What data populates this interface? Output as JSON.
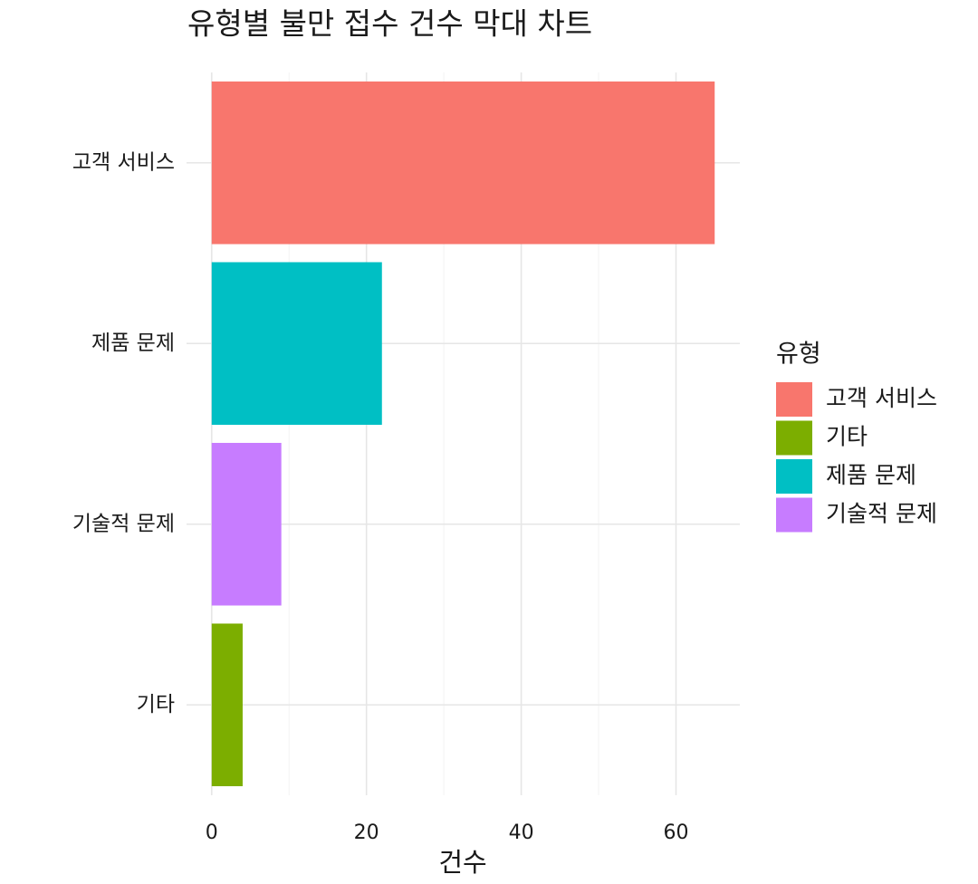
{
  "chart_data": {
    "type": "bar",
    "orientation": "horizontal",
    "title": "유형별 불만 접수 건수 막대 차트",
    "x_label": "건수",
    "categories": [
      "고객 서비스",
      "제품 문제",
      "기술적 문제",
      "기타"
    ],
    "values": [
      65,
      22,
      9,
      4
    ],
    "colors": [
      "#F8766D",
      "#00BFC4",
      "#C77CFF",
      "#7CAE00"
    ],
    "xlim": [
      -3.25,
      68.25
    ],
    "xticks": [
      0,
      20,
      40,
      60
    ],
    "minor_xticks": [
      10,
      30,
      50
    ],
    "grid": true,
    "legend": {
      "title": "유형",
      "position": "right",
      "items": [
        {
          "label": "고객 서비스",
          "color": "#F8766D"
        },
        {
          "label": "기타",
          "color": "#7CAE00"
        },
        {
          "label": "제품 문제",
          "color": "#00BFC4"
        },
        {
          "label": "기술적 문제",
          "color": "#C77CFF"
        }
      ]
    }
  }
}
